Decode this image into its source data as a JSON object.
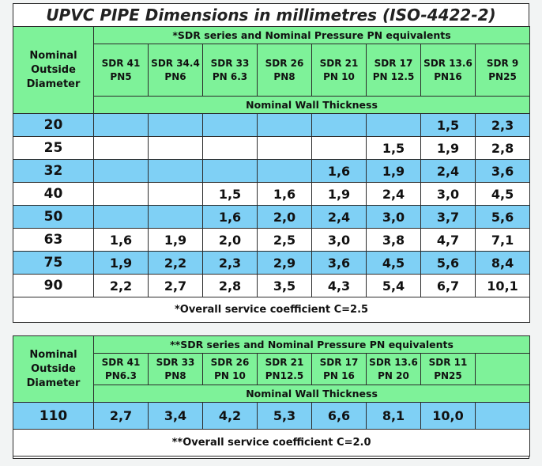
{
  "title": "UPVC PIPE Dimensions in millimetres (ISO-4422-2)",
  "colors": {
    "header_green": "#7ef299",
    "row_blue": "#7fd0f5",
    "row_white": "#ffffff"
  },
  "table1": {
    "od_header": "Nominal Outside Diameter",
    "series_header": "*SDR series and Nominal Pressure PN equivalents",
    "columns": [
      {
        "sdr": "SDR 41",
        "pn": "PN5"
      },
      {
        "sdr": "SDR 34.4",
        "pn": "PN6"
      },
      {
        "sdr": "SDR 33",
        "pn": "PN 6.3"
      },
      {
        "sdr": "SDR 26",
        "pn": "PN8"
      },
      {
        "sdr": "SDR 21",
        "pn": "PN 10"
      },
      {
        "sdr": "SDR 17",
        "pn": "PN 12.5"
      },
      {
        "sdr": "SDR 13.6",
        "pn": "PN16"
      },
      {
        "sdr": "SDR 9",
        "pn": "PN25"
      }
    ],
    "wall_header": "Nominal Wall Thickness",
    "rows": [
      {
        "od": "20",
        "values": [
          "",
          "",
          "",
          "",
          "",
          "",
          "1,5",
          "2,3"
        ]
      },
      {
        "od": "25",
        "values": [
          "",
          "",
          "",
          "",
          "",
          "1,5",
          "1,9",
          "2,8"
        ]
      },
      {
        "od": "32",
        "values": [
          "",
          "",
          "",
          "",
          "1,6",
          "1,9",
          "2,4",
          "3,6"
        ]
      },
      {
        "od": "40",
        "values": [
          "",
          "",
          "1,5",
          "1,6",
          "1,9",
          "2,4",
          "3,0",
          "4,5"
        ]
      },
      {
        "od": "50",
        "values": [
          "",
          "",
          "1,6",
          "2,0",
          "2,4",
          "3,0",
          "3,7",
          "5,6"
        ]
      },
      {
        "od": "63",
        "values": [
          "1,6",
          "1,9",
          "2,0",
          "2,5",
          "3,0",
          "3,8",
          "4,7",
          "7,1"
        ]
      },
      {
        "od": "75",
        "values": [
          "1,9",
          "2,2",
          "2,3",
          "2,9",
          "3,6",
          "4,5",
          "5,6",
          "8,4"
        ]
      },
      {
        "od": "90",
        "values": [
          "2,2",
          "2,7",
          "2,8",
          "3,5",
          "4,3",
          "5,4",
          "6,7",
          "10,1"
        ]
      }
    ],
    "footer": "*Overall service coefficient C=2.5"
  },
  "table2": {
    "od_header": "Nominal Outside Diameter",
    "series_header": "**SDR series and Nominal Pressure PN equivalents",
    "columns": [
      {
        "sdr": "SDR 41",
        "pn": "PN6.3"
      },
      {
        "sdr": "SDR 33",
        "pn": "PN8"
      },
      {
        "sdr": "SDR 26",
        "pn": "PN 10"
      },
      {
        "sdr": "SDR 21",
        "pn": "PN12.5"
      },
      {
        "sdr": "SDR 17",
        "pn": "PN 16"
      },
      {
        "sdr": "SDR 13.6",
        "pn": "PN 20"
      },
      {
        "sdr": "SDR 11",
        "pn": "PN25"
      },
      {
        "sdr": "",
        "pn": ""
      }
    ],
    "wall_header": "Nominal Wall Thickness",
    "rows": [
      {
        "od": "110",
        "values": [
          "2,7",
          "3,4",
          "4,2",
          "5,3",
          "6,6",
          "8,1",
          "10,0",
          ""
        ]
      }
    ],
    "footer": "**Overall service coefficient C=2.0"
  }
}
